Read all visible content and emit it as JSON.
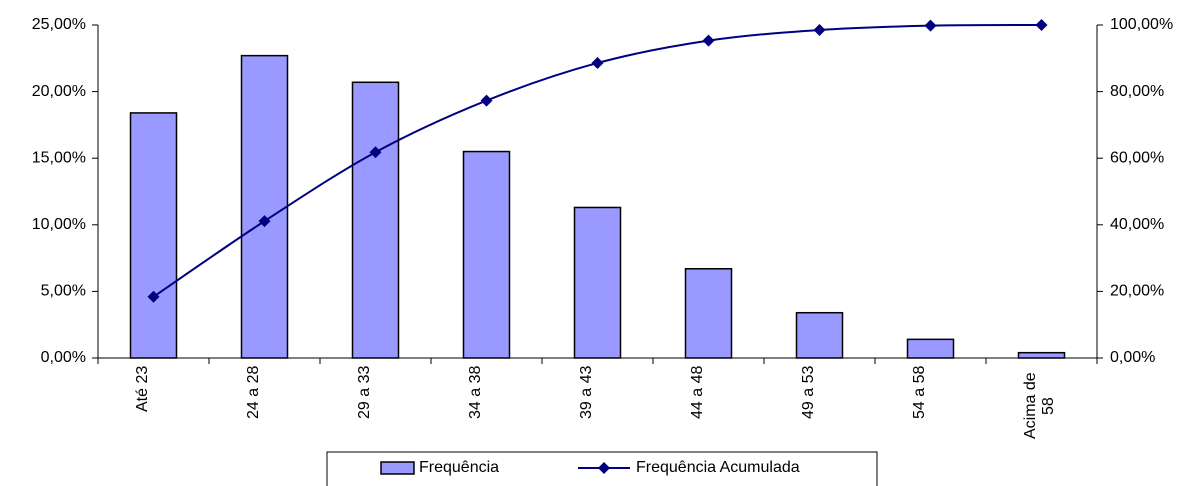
{
  "chart_data": {
    "type": "bar-line",
    "categories": [
      "Até 23",
      "24 a 28",
      "29 a 33",
      "34 a 38",
      "39 a 43",
      "44 a 48",
      "49 a 53",
      "54 a 58",
      "Acima de 58"
    ],
    "series": [
      {
        "name": "Frequência",
        "type": "bar",
        "color": "#9999ff",
        "axis": "y",
        "values": [
          18.4,
          22.7,
          20.7,
          15.5,
          11.3,
          6.7,
          3.4,
          1.4,
          0.4
        ]
      },
      {
        "name": "Frequência Acumulada",
        "type": "line",
        "color": "#000080",
        "axis": "y2",
        "values": [
          18.4,
          41.1,
          61.8,
          77.3,
          88.6,
          95.3,
          98.5,
          99.8,
          100
        ]
      }
    ],
    "ylim": [
      0,
      25
    ],
    "yticks": [
      {
        "value": 0,
        "label": "0,00%"
      },
      {
        "value": 5,
        "label": "5,00%"
      },
      {
        "value": 10,
        "label": "10,00%"
      },
      {
        "value": 15,
        "label": "15,00%"
      },
      {
        "value": 20,
        "label": "20,00%"
      },
      {
        "value": 25,
        "label": "25,00%"
      }
    ],
    "y2lim": [
      0,
      100
    ],
    "y2ticks": [
      {
        "value": 0,
        "label": "0,00%"
      },
      {
        "value": 20,
        "label": "20,00%"
      },
      {
        "value": 40,
        "label": "40,00%"
      },
      {
        "value": 60,
        "label": "60,00%"
      },
      {
        "value": 80,
        "label": "80,00%"
      },
      {
        "value": 100,
        "label": "100,00%"
      }
    ],
    "legend": "bottom"
  }
}
